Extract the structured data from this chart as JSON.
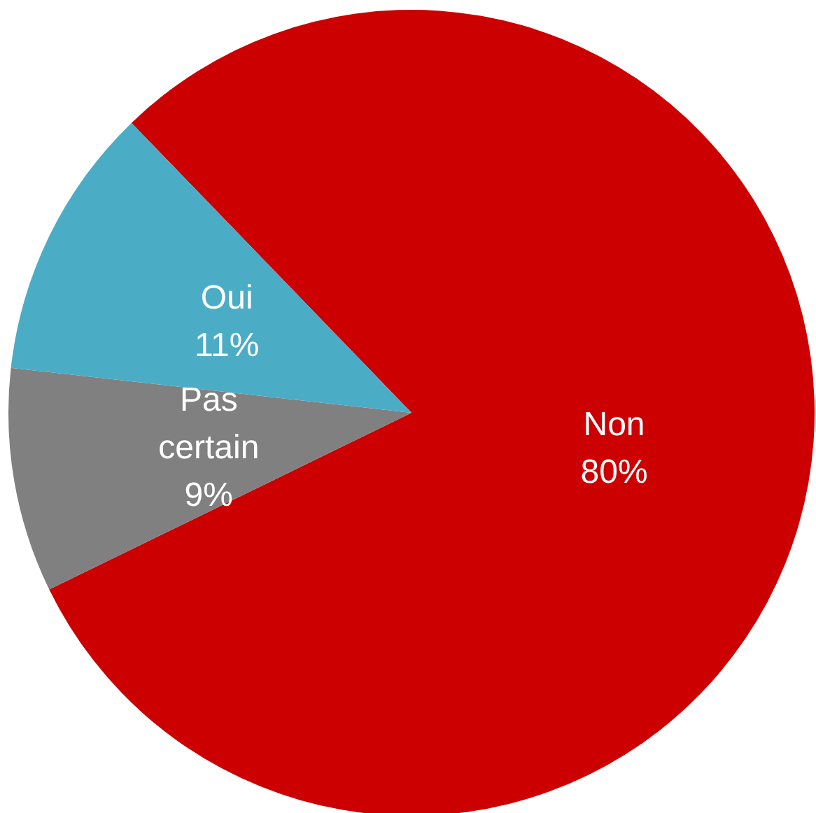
{
  "chart_data": {
    "type": "pie",
    "categories": [
      "Non",
      "Pas certain",
      "Oui"
    ],
    "values": [
      80,
      9,
      11
    ],
    "colors": [
      "#cc0000",
      "#808080",
      "#4bacc6"
    ],
    "value_labels": [
      "80%",
      "9%",
      "11%"
    ],
    "legend": false
  }
}
